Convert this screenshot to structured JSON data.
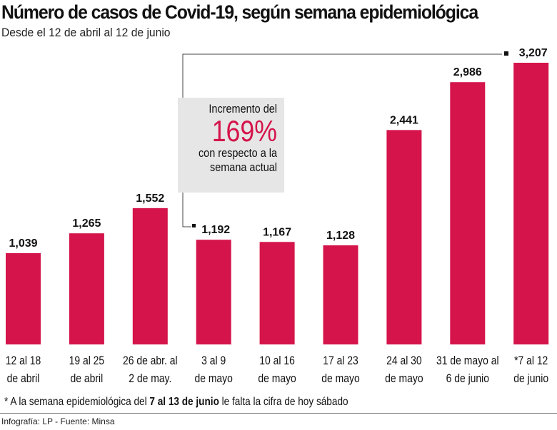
{
  "title": "Número de casos de Covid-19, según semana epidemiológica",
  "subtitle": "Desde el 12 de abril al 12 de junio",
  "colors": {
    "bar": "#d4144a",
    "callout_bg": "#e6e6e6",
    "text": "#111111"
  },
  "callout": {
    "line1": "Incremento del",
    "percent": "169%",
    "line2": "con respecto a la",
    "line3": "semana actual"
  },
  "note": {
    "prefix": "* A la semana epidemiológica del ",
    "bold": "7 al  13 de junio",
    "suffix": "  le falta la cifra de hoy sábado"
  },
  "credit": "Infografía: LP - Fuente: Minsa",
  "chart_data": {
    "type": "bar",
    "categories": [
      [
        "12 al 18",
        "de abril"
      ],
      [
        "19 al 25",
        "de abril"
      ],
      [
        "26 de abr. al",
        "2 de may."
      ],
      [
        "3 al 9",
        "de mayo"
      ],
      [
        "10 al 16",
        "de mayo"
      ],
      [
        "17 al 23",
        "de mayo"
      ],
      [
        "24 al 30",
        "de mayo"
      ],
      [
        "31 de mayo al",
        "6 de junio"
      ],
      [
        "*7 al 12",
        "de junio"
      ]
    ],
    "values": [
      1039,
      1265,
      1552,
      1192,
      1167,
      1128,
      2441,
      2986,
      3207
    ],
    "value_labels": [
      "1,039",
      "1,265",
      "1,552",
      "1,192",
      "1,167",
      "1,128",
      "2,441",
      "2,986",
      "3,207"
    ],
    "ylim": [
      0,
      3207
    ],
    "grid": false
  }
}
